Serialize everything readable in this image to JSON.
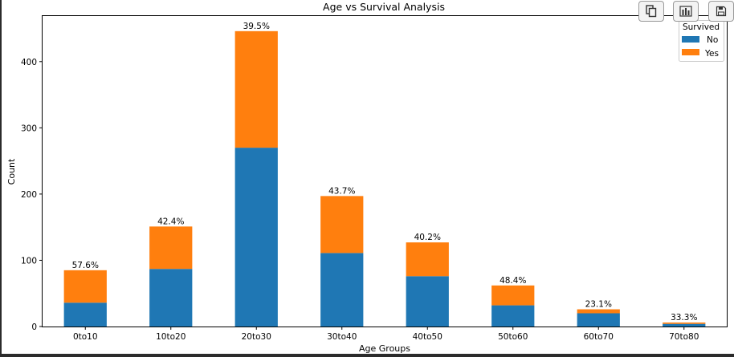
{
  "toolbar": {
    "buttons": [
      {
        "icon": "copy-icon"
      },
      {
        "icon": "bar-chart-icon"
      },
      {
        "icon": "save-icon"
      }
    ]
  },
  "chart_data": {
    "type": "bar",
    "stacked": true,
    "title": "Age vs Survival Analysis",
    "xlabel": "Age Groups",
    "ylabel": "Count",
    "categories": [
      "0to10",
      "10to20",
      "20to30",
      "30to40",
      "40to50",
      "50to60",
      "60to70",
      "70to80"
    ],
    "series": [
      {
        "name": "No",
        "color": "#1f77b4",
        "values": [
          36,
          87,
          270,
          111,
          76,
          32,
          20,
          4
        ]
      },
      {
        "name": "Yes",
        "color": "#ff7f0e",
        "values": [
          49,
          64,
          176,
          86,
          51,
          30,
          6,
          2
        ]
      }
    ],
    "bar_labels": [
      "57.6%",
      "42.4%",
      "39.5%",
      "43.7%",
      "40.2%",
      "48.4%",
      "23.1%",
      "33.3%"
    ],
    "ylim": [
      0,
      470
    ],
    "yticks": [
      0,
      100,
      200,
      300,
      400
    ],
    "legend": {
      "title": "Survived",
      "position": "top-right",
      "entries": [
        "No",
        "Yes"
      ]
    },
    "grid": false
  }
}
